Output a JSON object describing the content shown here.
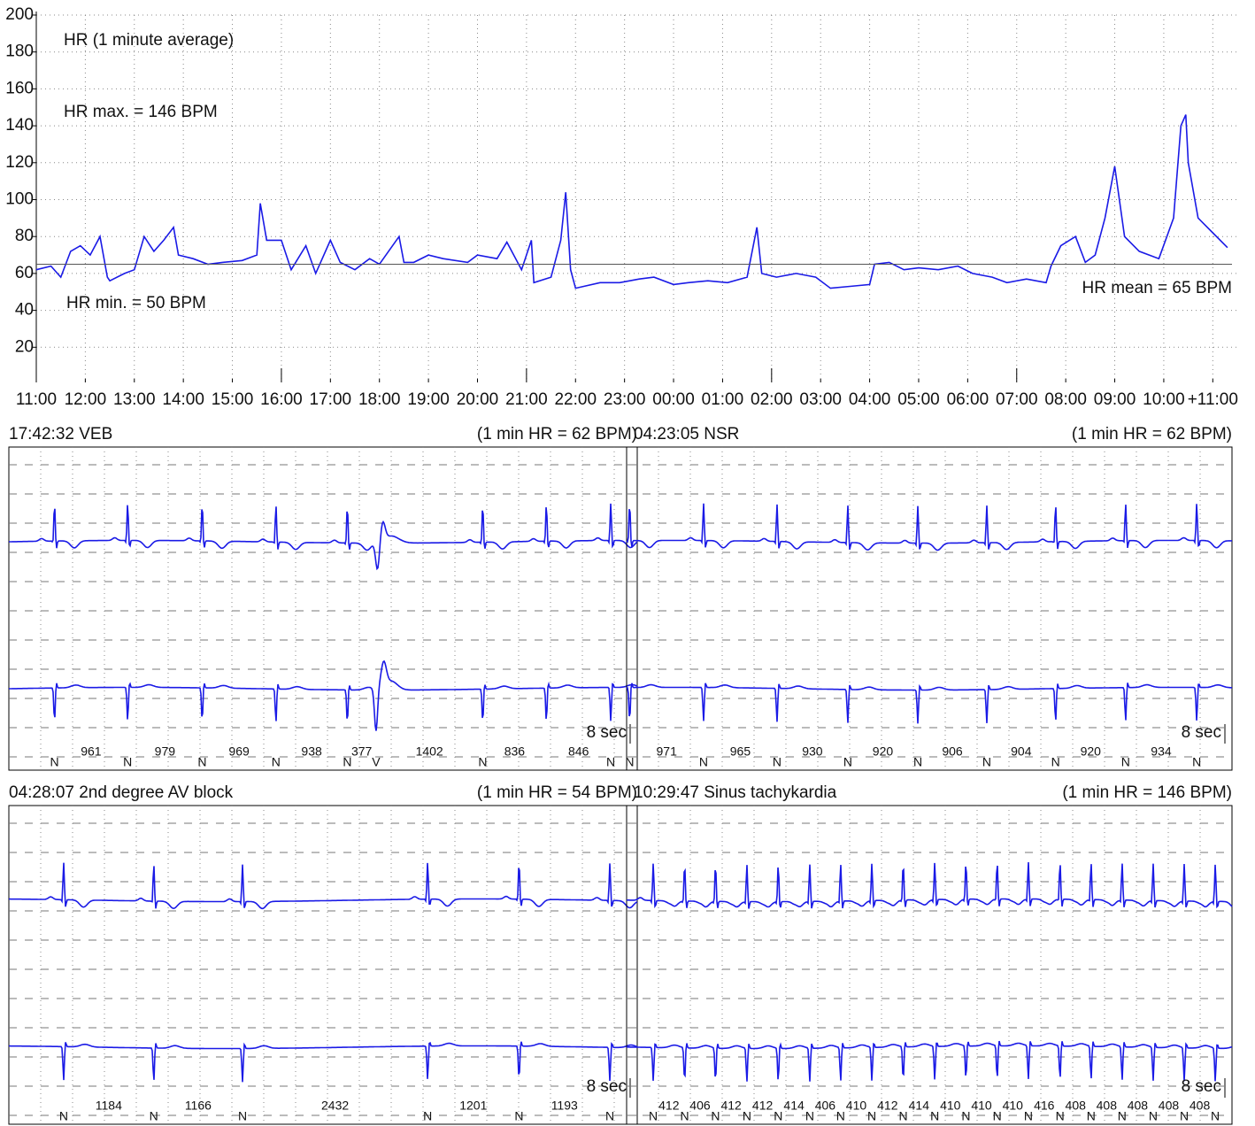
{
  "chart_data": {
    "type": "line",
    "title": "HR (1 minute average)",
    "annotations": [
      "HR max. = 146 BPM",
      "HR min. = 50 BPM",
      "HR mean = 65 BPM"
    ],
    "x": [
      0,
      0.3,
      0.5,
      0.7,
      0.9,
      1.1,
      1.3,
      1.45,
      1.5,
      1.8,
      2.0,
      2.2,
      2.4,
      2.6,
      2.8,
      2.9,
      3.2,
      3.5,
      3.8,
      4.2,
      4.5,
      4.57,
      4.7,
      5.0,
      5.2,
      5.5,
      5.7,
      6.0,
      6.2,
      6.5,
      6.8,
      7.0,
      7.4,
      7.5,
      7.7,
      8.0,
      8.3,
      8.8,
      9.0,
      9.4,
      9.6,
      9.9,
      10.1,
      10.15,
      10.5,
      10.7,
      10.8,
      10.9,
      11.0,
      11.5,
      11.9,
      12.3,
      12.6,
      13.0,
      13.3,
      13.7,
      14.1,
      14.5,
      14.7,
      14.8,
      15.1,
      15.5,
      15.9,
      16.2,
      16.6,
      17.0,
      17.1,
      17.4,
      17.7,
      18.0,
      18.4,
      18.8,
      19.1,
      19.5,
      19.8,
      20.2,
      20.6,
      20.7,
      20.9,
      21.2,
      21.4,
      21.6,
      21.8,
      22.0,
      22.2,
      22.5,
      22.9,
      23.2,
      23.35,
      23.45,
      23.5,
      23.7,
      24.0,
      24.3
    ],
    "values": [
      62,
      64,
      58,
      72,
      75,
      70,
      80,
      58,
      56,
      60,
      62,
      80,
      72,
      78,
      85,
      70,
      68,
      65,
      66,
      67,
      70,
      98,
      78,
      78,
      62,
      75,
      60,
      78,
      66,
      62,
      68,
      65,
      80,
      66,
      66,
      70,
      68,
      66,
      70,
      68,
      77,
      62,
      78,
      55,
      58,
      78,
      104,
      62,
      52,
      55,
      55,
      57,
      58,
      54,
      55,
      56,
      55,
      58,
      85,
      60,
      58,
      60,
      58,
      52,
      53,
      54,
      65,
      66,
      62,
      63,
      62,
      64,
      60,
      58,
      55,
      57,
      55,
      64,
      75,
      80,
      66,
      70,
      90,
      118,
      80,
      72,
      68,
      90,
      140,
      146,
      120,
      90,
      82,
      74
    ],
    "color": "#1a1ae6",
    "mean_line": 65,
    "xlim": [
      0,
      24.5
    ],
    "ylim": [
      0,
      200
    ],
    "xticks": [
      {
        "value": 0,
        "label": "11:00"
      },
      {
        "value": 1,
        "label": "12:00"
      },
      {
        "value": 2,
        "label": "13:00"
      },
      {
        "value": 3,
        "label": "14:00"
      },
      {
        "value": 4,
        "label": "15:00"
      },
      {
        "value": 5,
        "label": "16:00"
      },
      {
        "value": 6,
        "label": "17:00"
      },
      {
        "value": 7,
        "label": "18:00"
      },
      {
        "value": 8,
        "label": "19:00"
      },
      {
        "value": 9,
        "label": "20:00"
      },
      {
        "value": 10,
        "label": "21:00"
      },
      {
        "value": 11,
        "label": "22:00"
      },
      {
        "value": 12,
        "label": "23:00"
      },
      {
        "value": 13,
        "label": "00:00"
      },
      {
        "value": 14,
        "label": "01:00"
      },
      {
        "value": 15,
        "label": "02:00"
      },
      {
        "value": 16,
        "label": "03:00"
      },
      {
        "value": 17,
        "label": "04:00"
      },
      {
        "value": 18,
        "label": "05:00"
      },
      {
        "value": 19,
        "label": "06:00"
      },
      {
        "value": 20,
        "label": "07:00"
      },
      {
        "value": 21,
        "label": "08:00"
      },
      {
        "value": 22,
        "label": "09:00"
      },
      {
        "value": 23,
        "label": "10:00"
      },
      {
        "value": 24,
        "label": "+11:00"
      }
    ],
    "yticks": [
      20,
      40,
      60,
      80,
      100,
      120,
      140,
      160,
      180,
      200
    ],
    "grid": true
  },
  "strips": [
    {
      "title": "17:42:32 VEB",
      "hr_label": "(1 min HR = 62 BPM)",
      "first_beat_s": 0.6,
      "beats": [
        "N",
        "N",
        "N",
        "N",
        "N",
        "V",
        "N",
        null,
        "N"
      ],
      "rr": [
        961,
        979,
        969,
        938,
        377,
        1402,
        836,
        846
      ],
      "duration_label": "8 sec"
    },
    {
      "title": "04:23:05 NSR",
      "hr_label": "(1 min HR = 62 BPM)",
      "first_beat_s": 0.04,
      "beats": [
        "N",
        "N",
        "N",
        "N",
        "N",
        "N",
        "N",
        "N",
        "N"
      ],
      "rr": [
        971,
        965,
        930,
        920,
        906,
        904,
        920,
        934
      ],
      "duration_label": "8 sec"
    },
    {
      "title": "04:28:07 2nd degree AV block",
      "hr_label": "(1 min HR = 54 BPM)",
      "first_beat_s": 0.72,
      "beats": [
        "N",
        "N",
        "N",
        "N",
        "N",
        "N"
      ],
      "rr": [
        1184,
        1166,
        2432,
        1201,
        1193
      ],
      "duration_label": "8 sec"
    },
    {
      "title": "10:29:47 Sinus tachykardia",
      "hr_label": "(1 min HR = 146 BPM)",
      "first_beat_s": 0.35,
      "beats": [
        "N",
        "N",
        "N",
        "N",
        "N",
        "N",
        "N",
        "N",
        "N",
        "N",
        "N",
        "N",
        "N",
        "N",
        "N",
        "N",
        "N",
        "N",
        "N"
      ],
      "rr": [
        412,
        406,
        412,
        412,
        414,
        406,
        410,
        412,
        414,
        410,
        410,
        410,
        416,
        408,
        408,
        408,
        408,
        408
      ],
      "duration_label": "8 sec"
    }
  ]
}
